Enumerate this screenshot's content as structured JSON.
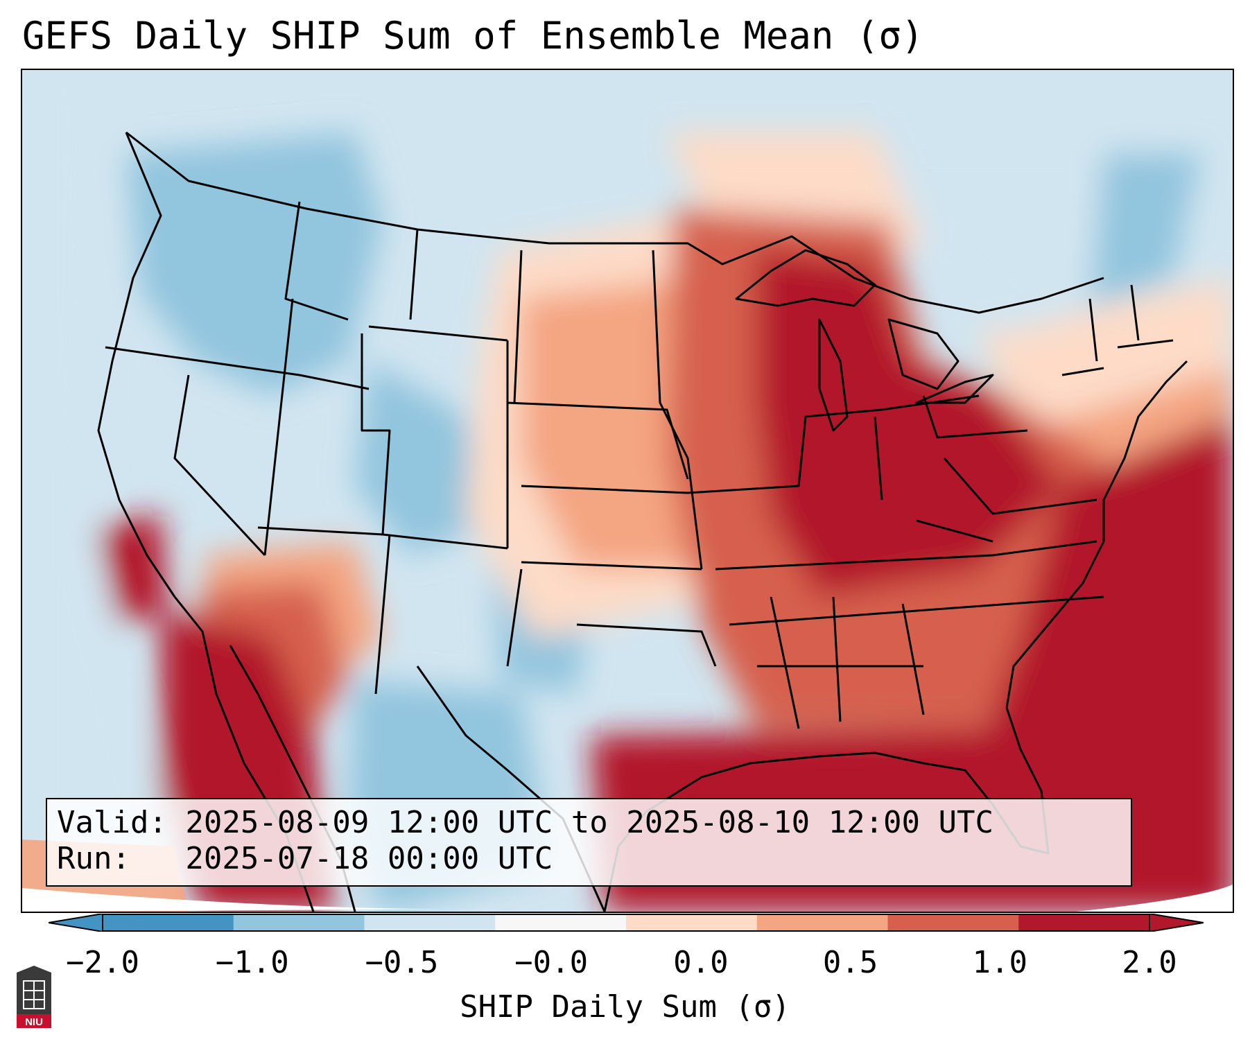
{
  "title": "GEFS Daily SHIP Sum of Ensemble Mean (σ)",
  "info": {
    "valid_line": "Valid: 2025-08-09 12:00 UTC to 2025-08-10 12:00 UTC",
    "run_line": "Run:   2025-07-18 00:00 UTC"
  },
  "colorbar": {
    "label": "SHIP Daily Sum (σ)",
    "ticks": [
      "−2.0",
      "−1.0",
      "−0.5",
      "−0.0",
      "0.0",
      "0.5",
      "1.0",
      "2.0"
    ],
    "colors": [
      "#4393c3",
      "#92c5de",
      "#d1e5f0",
      "#f7f7f7",
      "#fddbc7",
      "#f4a582",
      "#d6604d",
      "#b2182b"
    ],
    "extend": "both"
  },
  "logo": {
    "text": "NIU",
    "icon": "university-seal-icon"
  }
}
